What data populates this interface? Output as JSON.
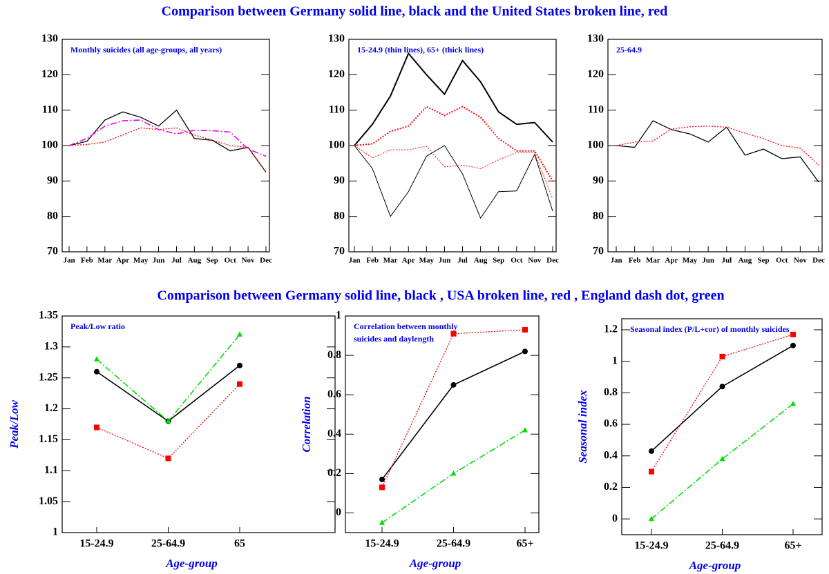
{
  "headers": [
    "Comparison between Germany  solid line, black  and the United States  broken line, red",
    "Comparison between Germany  solid line, black , USA  broken line, red , England  dash dot, green"
  ],
  "chart_data": [
    {
      "type": "line",
      "title": "Monthly suicides (all age-groups, all years)",
      "categories": [
        "Jan",
        "Feb",
        "Mar",
        "Apr",
        "May",
        "Jun",
        "Jul",
        "Aug",
        "Sep",
        "Oct",
        "Nov",
        "Dec"
      ],
      "ylim": [
        70,
        130
      ],
      "yticks": [
        70,
        80,
        90,
        100,
        110,
        120,
        130
      ],
      "series": [
        {
          "color": "#000000",
          "style": "solid",
          "width": 1.3,
          "values": [
            100,
            101.2,
            107.2,
            109.5,
            108,
            105.5,
            110,
            102,
            101.5,
            98.5,
            99.5,
            92.5
          ]
        },
        {
          "color": "#ff0000",
          "style": "dotted",
          "width": 1.3,
          "values": [
            100,
            100.3,
            101,
            103,
            105,
            104.5,
            105,
            103,
            101.5,
            100,
            99.5,
            92.5
          ]
        },
        {
          "color": "#ee00ee",
          "style": "dashdot",
          "width": 1.6,
          "values": [
            100,
            102,
            105.5,
            107,
            107.2,
            104.5,
            103.3,
            104.3,
            104.2,
            103.8,
            99,
            97
          ]
        }
      ]
    },
    {
      "type": "line",
      "title": "15-24.9 (thin lines), 65+ (thick lines)",
      "categories": [
        "Jan",
        "Feb",
        "Mar",
        "Apr",
        "May",
        "Jun",
        "Jul",
        "Aug",
        "Sep",
        "Oct",
        "Nov",
        "Dec"
      ],
      "ylim": [
        70,
        130
      ],
      "yticks": [
        70,
        80,
        90,
        100,
        110,
        120,
        130
      ],
      "series": [
        {
          "color": "#000000",
          "style": "solid",
          "width": 2,
          "values": [
            100,
            106,
            114,
            126,
            120,
            114.5,
            124,
            118,
            109.5,
            106,
            106.5,
            101
          ]
        },
        {
          "color": "#ff0000",
          "style": "dotted",
          "width": 2,
          "values": [
            100,
            100.5,
            104,
            105.5,
            111,
            108.5,
            111,
            108,
            102,
            98.5,
            98.5,
            90
          ]
        },
        {
          "color": "#000000",
          "style": "solid",
          "width": 1,
          "values": [
            100,
            93.5,
            80,
            87,
            97,
            100,
            92,
            79.5,
            87,
            87.2,
            97.5,
            81.5
          ]
        },
        {
          "color": "#ff0000",
          "style": "dotted",
          "width": 1,
          "values": [
            100,
            96.5,
            98.8,
            98.8,
            99.8,
            94,
            94.5,
            93.5,
            96,
            98,
            98,
            85
          ]
        }
      ]
    },
    {
      "type": "line",
      "title": "25-64.9",
      "categories": [
        "Jan",
        "Feb",
        "Mar",
        "Apr",
        "May",
        "Jun",
        "Jul",
        "Aug",
        "Sep",
        "Oct",
        "Nov",
        "Dec"
      ],
      "ylim": [
        70,
        130
      ],
      "yticks": [
        70,
        80,
        90,
        100,
        110,
        120,
        130
      ],
      "series": [
        {
          "color": "#000000",
          "style": "solid",
          "width": 1.3,
          "values": [
            100,
            99.5,
            107,
            104.5,
            103.3,
            101,
            105.2,
            97.3,
            99,
            96.3,
            96.8,
            89.7
          ]
        },
        {
          "color": "#ff0000",
          "style": "dotted",
          "width": 1.3,
          "values": [
            100,
            101,
            101.3,
            104.7,
            105.3,
            105.5,
            105.2,
            103.5,
            102,
            100,
            99.3,
            94.5
          ]
        }
      ]
    },
    {
      "type": "line",
      "title": "Peak/Low ratio",
      "xlabel": "Age-group",
      "ylabel": "Peak/Low",
      "categories": [
        "15-24.9",
        "25-64.9",
        "65"
      ],
      "ylim": [
        1,
        1.35
      ],
      "yticks": [
        1,
        1.05,
        1.1,
        1.15,
        1.2,
        1.25,
        1.3,
        1.35
      ],
      "series": [
        {
          "color": "#000000",
          "style": "solid",
          "width": 1.6,
          "marker": "circle",
          "values": [
            1.26,
            1.18,
            1.27
          ]
        },
        {
          "color": "#ff0000",
          "style": "dotted",
          "width": 1.3,
          "marker": "square",
          "values": [
            1.17,
            1.12,
            1.24
          ]
        },
        {
          "color": "#00dd00",
          "style": "dashdot",
          "width": 1.6,
          "marker": "triangle",
          "values": [
            1.28,
            1.18,
            1.32
          ]
        }
      ]
    },
    {
      "type": "line",
      "title": [
        "Correlation between monthly",
        "suicides and daylength"
      ],
      "xlabel": "Age-group",
      "ylabel": "Correlation",
      "categories": [
        "15-24.9",
        "25-64.9",
        "65+"
      ],
      "ylim": [
        -0.1,
        1
      ],
      "yticks": [
        0,
        0.2,
        0.4,
        0.6,
        0.8,
        1
      ],
      "series": [
        {
          "color": "#000000",
          "style": "solid",
          "width": 1.6,
          "marker": "circle",
          "values": [
            0.17,
            0.65,
            0.82
          ]
        },
        {
          "color": "#ff0000",
          "style": "dotted",
          "width": 1.3,
          "marker": "square",
          "values": [
            0.13,
            0.91,
            0.93
          ]
        },
        {
          "color": "#00dd00",
          "style": "dashdot",
          "width": 1.6,
          "marker": "triangle",
          "values": [
            -0.05,
            0.2,
            0.42
          ]
        }
      ]
    },
    {
      "type": "line",
      "title": "Seasonal index (P/L+cor) of monthly suicides",
      "xlabel": "Age-group",
      "ylabel": "Seasonal index",
      "categories": [
        "15-24.9",
        "25-64.9",
        "65+"
      ],
      "ylim": [
        -0.1,
        1.27
      ],
      "yticks": [
        0,
        0.2,
        0.4,
        0.6,
        0.8,
        1,
        1.2
      ],
      "series": [
        {
          "color": "#000000",
          "style": "solid",
          "width": 1.6,
          "marker": "circle",
          "values": [
            0.43,
            0.84,
            1.1
          ]
        },
        {
          "color": "#ff0000",
          "style": "dotted",
          "width": 1.3,
          "marker": "square",
          "values": [
            0.3,
            1.03,
            1.17
          ]
        },
        {
          "color": "#00dd00",
          "style": "dashdot",
          "width": 1.6,
          "marker": "triangle",
          "values": [
            0,
            0.38,
            0.73
          ]
        }
      ]
    }
  ]
}
